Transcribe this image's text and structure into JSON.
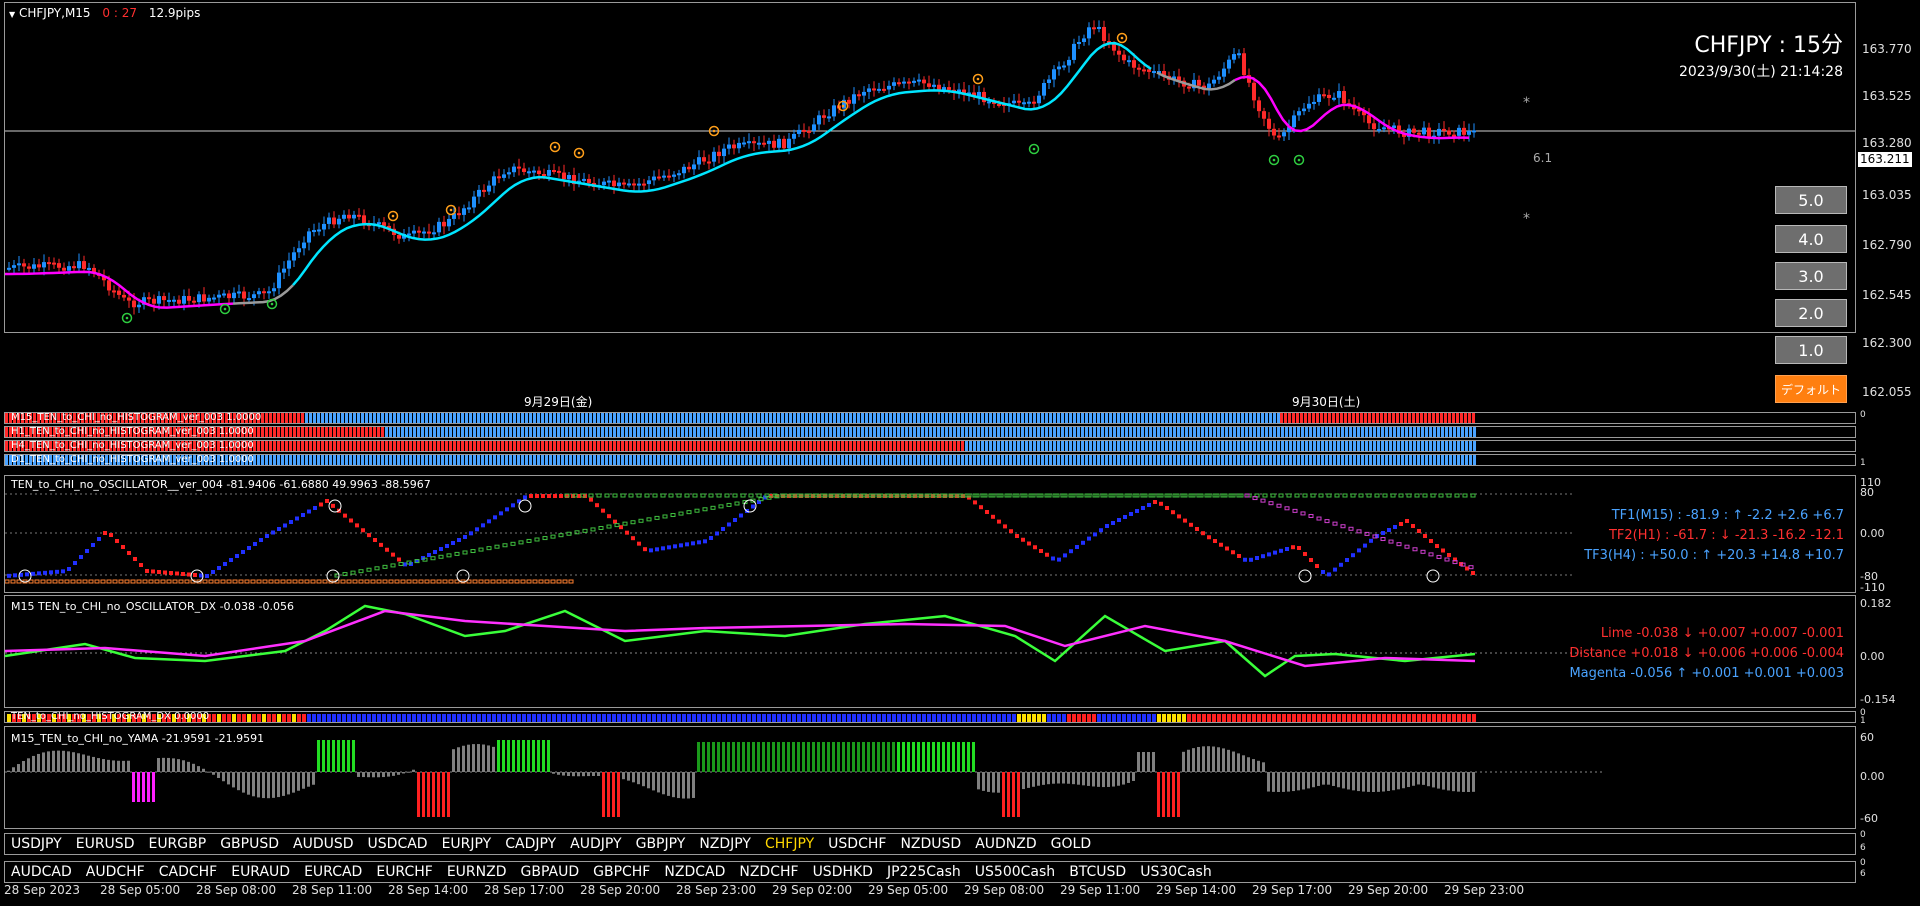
{
  "header": {
    "symbol_tf": "CHFJPY,M15",
    "countdown": "0 : 27",
    "spread": "12.9pips",
    "big_title": "CHFJPY : 15分",
    "datetime": "2023/9/30(土) 21:14:28"
  },
  "main_chart": {
    "price_labels": [
      "163.770",
      "163.525",
      "163.280",
      "163.035",
      "162.790",
      "162.545",
      "162.300",
      "162.055"
    ],
    "current_price": "163.211",
    "day_labels": [
      "9月29日(金)",
      "9月30日(土)"
    ],
    "h_line_label": "6.1",
    "asterisks": [
      "*",
      "*"
    ],
    "colors": {
      "bull": "#1e90ff",
      "bear": "#ff2a2a",
      "ma_up": "#00e5ff",
      "ma_down": "#ff00ff",
      "ma_flat": "#9a9a9a"
    }
  },
  "zoom_buttons": [
    "5.0",
    "4.0",
    "3.0",
    "2.0",
    "1.0"
  ],
  "default_button": "デフォルト",
  "histograms": [
    {
      "label": "M15_TEN_to_CHI_no_HISTOGRAM_ver_003 1.0000"
    },
    {
      "label": "H1_TEN_to_CHI_no_HISTOGRAM_ver_003 1.0000"
    },
    {
      "label": "H4_TEN_to_CHI_no_HISTOGRAM_ver_003 1.0000"
    },
    {
      "label": "D1_TEN_to_CHI_no_HISTOGRAM_ver_003 1.0000"
    }
  ],
  "histogram_scale": [
    "0",
    "1"
  ],
  "oscillator": {
    "label": "TEN_to_CHI_no_OSCILLATOR__ver_004 -81.9406 -61.6880 49.9963 -88.5967",
    "scale": [
      "110",
      "80",
      "0.00",
      "-80",
      "-110"
    ],
    "legend": [
      {
        "text": "TF1(M15) : -81.9 : ↑ -2.2 +2.6 +6.7",
        "color": "#4aa3ff"
      },
      {
        "text": "TF2(H1) : -61.7 : ↓ -21.3 -16.2 -12.1",
        "color": "#ff3030"
      },
      {
        "text": "TF3(H4) : +50.0 : ↑ +20.3 +14.8 +10.7",
        "color": "#4aa3ff"
      }
    ]
  },
  "dx": {
    "label": "M15 TEN_to_CHI_no_OSCILLATOR_DX -0.038 -0.056",
    "scale": [
      "0.182",
      "0.00",
      "-0.154"
    ],
    "legend": [
      {
        "text": "Lime -0.038 ↓ +0.007 +0.007 -0.001",
        "color": "#ff3030"
      },
      {
        "text": "Distance +0.018 ↓ +0.006 +0.006 -0.004",
        "color": "#ff3030"
      },
      {
        "text": "Magenta -0.056 ↑ +0.001 +0.001 +0.003",
        "color": "#4aa3ff"
      }
    ]
  },
  "histogram_dx": {
    "label": "TEN_to_CHI_no_HISTOGRAM_DX 0.0000",
    "scale": [
      "0",
      "1"
    ]
  },
  "yama": {
    "label": "M15_TEN_to_CHI_no_YAMA -21.9591 -21.9591",
    "scale": [
      "60",
      "0.00",
      "-60"
    ]
  },
  "symbols_row1": [
    "USDJPY",
    "EURUSD",
    "EURGBP",
    "GBPUSD",
    "AUDUSD",
    "USDCAD",
    "EURJPY",
    "CADJPY",
    "AUDJPY",
    "GBPJPY",
    "NZDJPY",
    "CHFJPY",
    "USDCHF",
    "NZDUSD",
    "AUDNZD",
    "GOLD"
  ],
  "symbols_row1_active": "CHFJPY",
  "symbols_row1_scale": [
    "0",
    "6"
  ],
  "symbols_row2": [
    "AUDCAD",
    "AUDCHF",
    "CADCHF",
    "EURAUD",
    "EURCAD",
    "EURCHF",
    "EURNZD",
    "GBPAUD",
    "GBPCHF",
    "NZDCAD",
    "NZDCHF",
    "USDHKD",
    "JP225Cash",
    "US500Cash",
    "BTCUSD",
    "US30Cash"
  ],
  "symbols_row2_scale": [
    "0",
    "6"
  ],
  "time_axis": [
    "28 Sep 2023",
    "28 Sep 05:00",
    "28 Sep 08:00",
    "28 Sep 11:00",
    "28 Sep 14:00",
    "28 Sep 17:00",
    "28 Sep 20:00",
    "28 Sep 23:00",
    "29 Sep 02:00",
    "29 Sep 05:00",
    "29 Sep 08:00",
    "29 Sep 11:00",
    "29 Sep 14:00",
    "29 Sep 17:00",
    "29 Sep 20:00",
    "29 Sep 23:00"
  ]
}
